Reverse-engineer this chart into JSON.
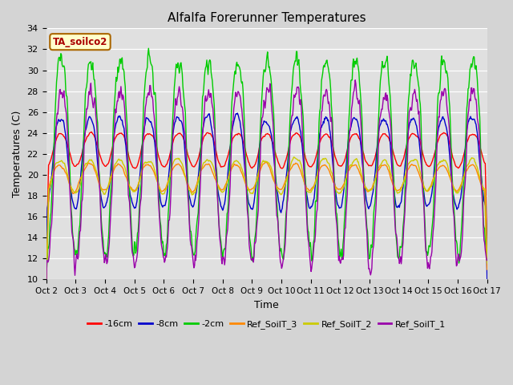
{
  "title": "Alfalfa Forerunner Temperatures",
  "xlabel": "Time",
  "ylabel": "Temperatures (C)",
  "ylim": [
    10,
    34
  ],
  "yticks": [
    10,
    12,
    14,
    16,
    18,
    20,
    22,
    24,
    26,
    28,
    30,
    32,
    34
  ],
  "fig_bg": "#d4d4d4",
  "plot_bg": "#e0e0e0",
  "series": [
    {
      "label": "-16cm",
      "color": "#ff0000",
      "mean": 22.5,
      "amp": 1.5,
      "phase_shift": 0.0,
      "noise": 0.25,
      "smooth": 8,
      "asym": 0.3
    },
    {
      "label": "-8cm",
      "color": "#0000cc",
      "mean": 21.5,
      "amp": 4.0,
      "phase_shift": 0.1,
      "noise": 0.4,
      "smooth": 5,
      "asym": 0.5
    },
    {
      "label": "-2cm",
      "color": "#00cc00",
      "mean": 22.5,
      "amp": 8.5,
      "phase_shift": -0.05,
      "noise": 0.6,
      "smooth": 2,
      "asym": 0.7
    },
    {
      "label": "Ref_SoilT_3",
      "color": "#ff8800",
      "mean": 19.8,
      "amp": 1.2,
      "phase_shift": 0.3,
      "noise": 0.3,
      "smooth": 10,
      "asym": 0.2
    },
    {
      "label": "Ref_SoilT_2",
      "color": "#cccc00",
      "mean": 20.0,
      "amp": 1.5,
      "phase_shift": 0.2,
      "noise": 0.35,
      "smooth": 8,
      "asym": 0.2
    },
    {
      "label": "Ref_SoilT_1",
      "color": "#9900aa",
      "mean": 20.5,
      "amp": 7.5,
      "phase_shift": -0.1,
      "noise": 0.6,
      "smooth": 2,
      "asym": 0.7
    }
  ],
  "annotation_text": "TA_soilco2",
  "n_days": 15,
  "points_per_day": 48,
  "x_tick_labels": [
    "Oct 2",
    "Oct 3",
    "Oct 4",
    "Oct 5",
    "Oct 6",
    "Oct 7",
    "Oct 8",
    "Oct 9",
    "Oct 10",
    "Oct 11",
    "Oct 12",
    "Oct 13",
    "Oct 14",
    "Oct 15",
    "Oct 16",
    "Oct 17"
  ],
  "line_width": 1.0
}
